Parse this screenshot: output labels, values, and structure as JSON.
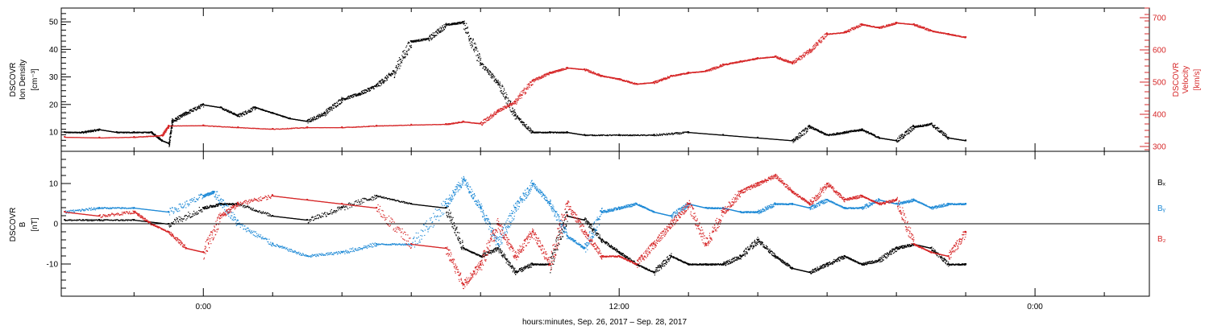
{
  "chart_data": [
    {
      "type": "scatter",
      "panel": "top",
      "ylabel_left": [
        "DSCOVR",
        "Ion Density",
        "[cm⁻³]"
      ],
      "ylabel_right": [
        "DSCOVR",
        "Velocity",
        "[km/s]"
      ],
      "ylim_left": [
        3,
        55
      ],
      "yticks_left": [
        10,
        20,
        30,
        40,
        50
      ],
      "ylim_right": [
        285,
        730
      ],
      "yticks_right": [
        300,
        400,
        500,
        600,
        700
      ],
      "series": [
        {
          "axis": "left",
          "color": "#000000",
          "x": [
            -4.0,
            -3.5,
            -3.0,
            -2.5,
            -2.0,
            -1.5,
            -1.2,
            -1.0,
            -0.9,
            -0.5,
            0.0,
            0.5,
            1.0,
            1.5,
            2.0,
            2.5,
            3.0,
            3.5,
            4.0,
            4.5,
            5.0,
            5.5,
            6.0,
            6.5,
            7.0,
            7.5,
            8.0,
            8.5,
            9.0,
            9.5,
            10.0,
            10.5,
            11.0,
            12.0,
            13.0,
            14.0,
            15.0,
            16.0,
            17.0,
            17.5,
            18.0,
            18.5,
            19.0,
            19.5,
            20.0,
            20.5,
            21.0,
            21.5,
            22.0
          ],
          "y": [
            10,
            10,
            11,
            10,
            10,
            10,
            7,
            6,
            14,
            17,
            20,
            19,
            16,
            19,
            17,
            15,
            14,
            17,
            22,
            24,
            27,
            32,
            43,
            44,
            49,
            50,
            35,
            28,
            16,
            10,
            10,
            10,
            9,
            9,
            9,
            10,
            9,
            8,
            7,
            12,
            9,
            10,
            11,
            8,
            7,
            12,
            13,
            8,
            7
          ]
        },
        {
          "axis": "right",
          "color": "#d62728",
          "x": [
            -4.0,
            -3.0,
            -2.0,
            -1.2,
            -1.0,
            0.0,
            1.0,
            2.0,
            3.0,
            4.0,
            5.0,
            6.0,
            7.0,
            7.5,
            8.0,
            8.5,
            9.0,
            9.5,
            10.0,
            10.5,
            11.0,
            11.5,
            12.0,
            12.5,
            13.0,
            13.5,
            14.0,
            14.5,
            15.0,
            15.5,
            16.0,
            16.5,
            17.0,
            17.5,
            18.0,
            18.5,
            19.0,
            19.5,
            20.0,
            20.5,
            21.0,
            21.5,
            22.0
          ],
          "y": [
            330,
            328,
            330,
            335,
            365,
            366,
            360,
            355,
            360,
            360,
            365,
            368,
            370,
            378,
            372,
            412,
            440,
            505,
            530,
            545,
            540,
            520,
            510,
            495,
            500,
            520,
            530,
            535,
            555,
            565,
            575,
            580,
            560,
            600,
            650,
            655,
            680,
            670,
            685,
            680,
            660,
            650,
            640
          ]
        }
      ]
    },
    {
      "type": "scatter",
      "panel": "bottom",
      "ylabel_left": [
        "DSCOVR",
        "B",
        "[nT]"
      ],
      "ylim": [
        -18,
        18
      ],
      "yticks": [
        -10,
        0,
        10
      ],
      "legend": [
        {
          "label": "Bₓ",
          "color": "#000000"
        },
        {
          "label": "Bᵧ",
          "color": "#1f8ad6"
        },
        {
          "label": "B₂",
          "color": "#d62728"
        }
      ],
      "series": [
        {
          "name": "Bx",
          "color": "#000000",
          "x": [
            -4.0,
            -3.0,
            -2.0,
            -1.0,
            0.0,
            0.5,
            1.0,
            2.0,
            3.0,
            4.0,
            5.0,
            6.0,
            7.0,
            7.5,
            8.0,
            8.5,
            9.0,
            9.5,
            10.0,
            10.5,
            11.0,
            11.5,
            12.0,
            12.5,
            13.0,
            13.5,
            14.0,
            14.5,
            15.0,
            15.5,
            16.0,
            16.5,
            17.0,
            17.5,
            18.0,
            18.5,
            19.0,
            19.5,
            20.0,
            20.5,
            21.0,
            21.5,
            22.0
          ],
          "y": [
            1,
            1,
            1,
            0,
            4,
            5,
            5,
            2,
            1,
            4,
            7,
            5,
            4,
            -6,
            -8,
            -6,
            -12,
            -10,
            -10,
            2,
            1,
            -4,
            -7,
            -10,
            -12,
            -8,
            -10,
            -10,
            -10,
            -8,
            -4,
            -8,
            -11,
            -12,
            -10,
            -8,
            -10,
            -9,
            -6,
            -5,
            -6,
            -10,
            -10
          ]
        },
        {
          "name": "By",
          "color": "#1f8ad6",
          "x": [
            -4.0,
            -3.0,
            -2.0,
            -1.0,
            0.0,
            0.3,
            1.0,
            2.0,
            3.0,
            4.0,
            5.0,
            6.0,
            7.0,
            7.5,
            8.0,
            8.5,
            9.0,
            9.5,
            10.0,
            10.5,
            11.0,
            11.5,
            12.0,
            12.5,
            13.0,
            13.5,
            14.0,
            14.5,
            15.0,
            15.5,
            16.0,
            16.5,
            17.0,
            17.5,
            18.0,
            18.5,
            19.0,
            19.5,
            20.0,
            20.5,
            21.0,
            21.5,
            22.0
          ],
          "y": [
            3,
            4,
            4,
            3,
            7,
            8,
            0,
            -5,
            -8,
            -7,
            -5,
            -5,
            5,
            11,
            4,
            -5,
            4,
            10,
            5,
            -3,
            -6,
            3,
            4,
            5,
            3,
            2,
            5,
            4,
            4,
            3,
            3,
            5,
            5,
            4,
            6,
            4,
            4,
            6,
            5,
            6,
            4,
            5,
            5
          ]
        },
        {
          "name": "Bz",
          "color": "#d62728",
          "x": [
            -4.0,
            -3.0,
            -2.0,
            -1.5,
            -1.0,
            -0.5,
            0.0,
            0.5,
            1.0,
            2.0,
            3.0,
            4.0,
            5.0,
            6.0,
            7.0,
            7.5,
            8.0,
            8.5,
            9.0,
            9.5,
            10.0,
            10.5,
            11.0,
            11.5,
            12.0,
            12.5,
            13.0,
            13.5,
            14.0,
            14.5,
            15.0,
            15.5,
            16.0,
            16.5,
            17.0,
            17.5,
            18.0,
            18.5,
            19.0,
            19.5,
            20.0,
            20.5,
            21.0,
            21.5,
            22.0
          ],
          "y": [
            3,
            2,
            3,
            0,
            -2,
            -6,
            -7,
            2,
            5,
            7,
            6,
            5,
            4,
            -5,
            -6,
            -15,
            -10,
            0,
            -8,
            -2,
            -10,
            5,
            -2,
            -8,
            -8,
            -10,
            -5,
            0,
            5,
            -5,
            3,
            8,
            10,
            12,
            8,
            5,
            10,
            6,
            7,
            5,
            6,
            -5,
            -7,
            -8,
            -2
          ]
        }
      ]
    }
  ],
  "x_axis": {
    "xlim": [
      -4.1,
      27.3
    ],
    "tick_labels": [
      {
        "x": 0,
        "label": "0:00"
      },
      {
        "x": 12,
        "label": "12:00"
      },
      {
        "x": 24,
        "label": "0:00"
      }
    ],
    "minor_ticks": [
      -2,
      2,
      4,
      6,
      8,
      10,
      14,
      16,
      18,
      20,
      22,
      26
    ],
    "xlabel": "hours:minutes, Sep. 26, 2017 – Sep. 28, 2017"
  },
  "colors": {
    "black": "#000000",
    "red": "#d62728",
    "blue": "#1f8ad6"
  }
}
